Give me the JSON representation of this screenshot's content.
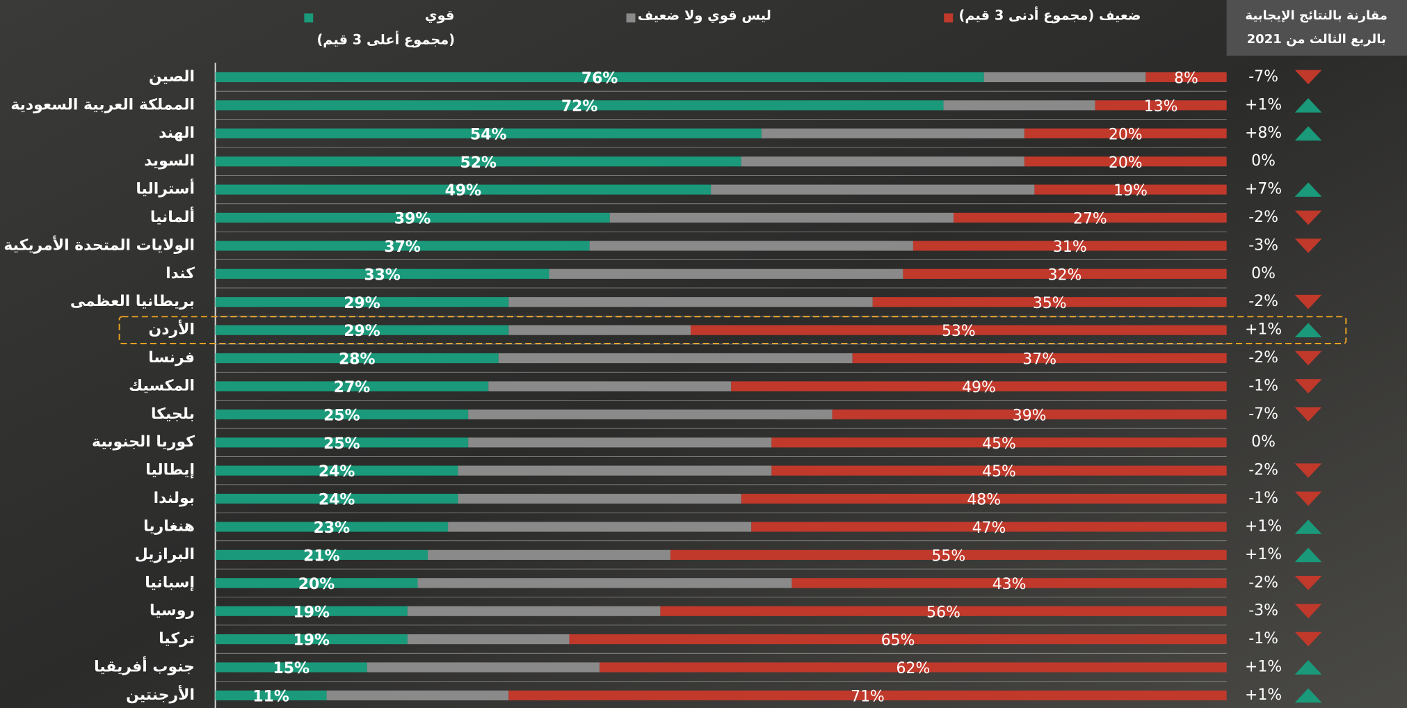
{
  "chart_data": {
    "type": "bar",
    "orientation": "horizontal",
    "stacked": true,
    "categories": [
      "الصين",
      "المملكة العربية السعودية",
      "الهند",
      "السويد",
      "أستراليا",
      "ألمانيا",
      "الولايات المتحدة الأمريكية",
      "كندا",
      "بريطانيا العظمى",
      "الأردن",
      "فرنسا",
      "المكسيك",
      "بلجيكا",
      "كوريا الجنوبية",
      "إيطاليا",
      "بولندا",
      "هنغاريا",
      "البرازيل",
      "إسبانيا",
      "روسيا",
      "تركيا",
      "جنوب أفريقيا",
      "الأرجنتين"
    ],
    "xlim": [
      0,
      100
    ],
    "highlight_index": 9,
    "series": [
      {
        "name": "قوي",
        "subtitle": "(مجموع أعلى 3 قيم)",
        "color": "#1a9a7a",
        "values": [
          76,
          72,
          54,
          52,
          49,
          39,
          37,
          33,
          29,
          29,
          28,
          27,
          25,
          25,
          24,
          24,
          23,
          21,
          20,
          19,
          19,
          15,
          11
        ],
        "value_labels": [
          "76%",
          "72%",
          "54%",
          "52%",
          "49%",
          "39%",
          "37%",
          "33%",
          "29%",
          "29%",
          "28%",
          "27%",
          "25%",
          "25%",
          "24%",
          "24%",
          "23%",
          "21%",
          "20%",
          "19%",
          "19%",
          "15%",
          "11%"
        ]
      },
      {
        "name": "ليس قوي ولا ضعيف",
        "color": "#8a8a8a",
        "values": [
          16,
          15,
          26,
          28,
          32,
          34,
          32,
          35,
          36,
          18,
          35,
          24,
          36,
          30,
          31,
          28,
          30,
          24,
          37,
          25,
          16,
          23,
          18
        ]
      },
      {
        "name": "ضعيف (مجموع أدنى 3 قيم)",
        "color": "#c0392b",
        "values": [
          8,
          13,
          20,
          20,
          19,
          27,
          31,
          32,
          35,
          53,
          37,
          49,
          39,
          45,
          45,
          48,
          47,
          55,
          43,
          56,
          65,
          62,
          71
        ],
        "value_labels": [
          "8%",
          "13%",
          "20%",
          "20%",
          "19%",
          "27%",
          "31%",
          "32%",
          "35%",
          "53%",
          "37%",
          "49%",
          "39%",
          "45%",
          "45%",
          "48%",
          "47%",
          "55%",
          "43%",
          "56%",
          "65%",
          "62%",
          "71%"
        ]
      }
    ],
    "change": {
      "title": [
        "مقارنة بالنتائج الإيجابية",
        "بالربع الثالث من 2021"
      ],
      "up_color": "#1a9a7a",
      "down_color": "#c0392b",
      "values": [
        -7,
        1,
        8,
        0,
        7,
        -2,
        -3,
        0,
        -2,
        1,
        -2,
        -1,
        -7,
        0,
        -2,
        -1,
        1,
        1,
        -2,
        -3,
        -1,
        1,
        1
      ],
      "value_labels": [
        "-7%",
        "+1%",
        "+8%",
        "0%",
        "+7%",
        "-2%",
        "-3%",
        "0%",
        "-2%",
        "+1%",
        "-2%",
        "-1%",
        "-7%",
        "0%",
        "-2%",
        "-1%",
        "+1%",
        "+1%",
        "-2%",
        "-3%",
        "-1%",
        "+1%",
        "+1%"
      ]
    }
  }
}
